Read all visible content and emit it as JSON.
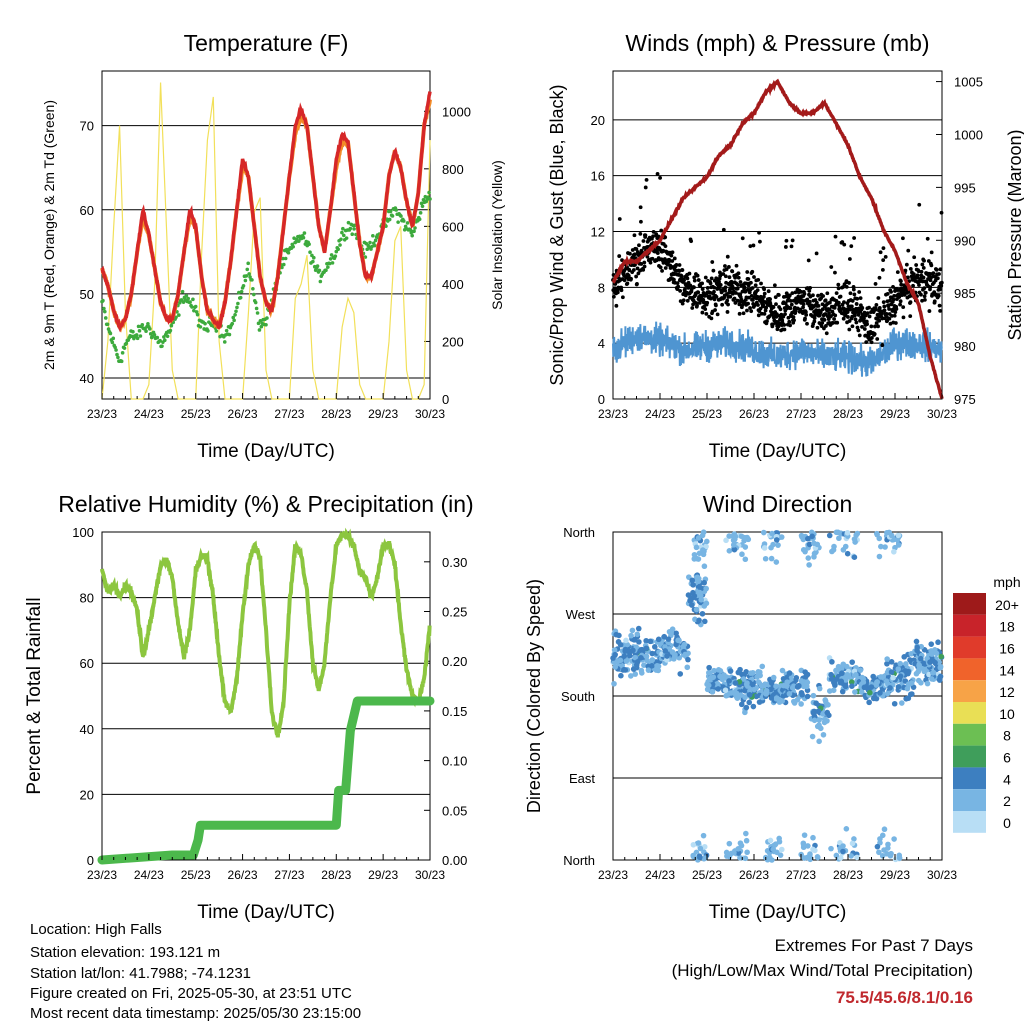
{
  "info": {
    "location": "Location: High Falls",
    "elevation": "Station elevation: 193.121 m",
    "latlon": "Station lat/lon: 41.7988; -74.1231",
    "created": "Figure created on Fri, 2025-05-30, at 23:51 UTC",
    "recent": "Most recent data timestamp: 2025/05/30 23:15:00"
  },
  "extremes": {
    "title": "Extremes For Past 7 Days",
    "subtitle": "(High/Low/Max Wind/Total Precipitation)",
    "values": "75.5/45.6/8.1/0.16",
    "color": "#c0282d"
  },
  "x_ticks": [
    "23/23",
    "24/23",
    "25/23",
    "26/23",
    "27/23",
    "28/23",
    "29/23",
    "30/23"
  ],
  "chart_data": [
    {
      "type": "line",
      "title": "Temperature (F)",
      "xlabel": "Time (Day/UTC)",
      "ylabel": "2m & 9m T (Red, Orange) & 2m Td (Green)",
      "y2label": "Solar Insolation (Yellow)",
      "ylim": [
        37.5,
        76.5
      ],
      "yticks": [
        40,
        50,
        60,
        70
      ],
      "y2lim": [
        0,
        1140
      ],
      "y2ticks": [
        0,
        200,
        400,
        600,
        800,
        1000
      ],
      "x": [
        0,
        0.125,
        0.25,
        0.375,
        0.5,
        0.625,
        0.75,
        0.875,
        1,
        1.125,
        1.25,
        1.375,
        1.5,
        1.625,
        1.75,
        1.875,
        2,
        2.125,
        2.25,
        2.375,
        2.5,
        2.625,
        2.75,
        2.875,
        3,
        3.125,
        3.25,
        3.375,
        3.5,
        3.625,
        3.75,
        3.875,
        4,
        4.125,
        4.25,
        4.375,
        4.5,
        4.625,
        4.75,
        4.875,
        5,
        5.125,
        5.25,
        5.375,
        5.5,
        5.625,
        5.75,
        5.875,
        6,
        6.125,
        6.25,
        6.375,
        6.5,
        6.625,
        6.75,
        6.875,
        7
      ],
      "series": [
        {
          "color": "#d62728",
          "values": [
            53,
            51,
            48,
            46,
            47,
            50,
            55,
            60,
            57,
            53,
            49,
            47,
            47,
            50,
            55,
            60,
            58,
            52,
            48,
            47,
            46,
            49,
            54,
            60,
            66,
            64,
            58,
            52,
            49,
            48,
            52,
            58,
            64,
            70,
            72,
            70,
            64,
            58,
            55,
            60,
            66,
            69,
            68,
            62,
            56,
            52,
            52,
            55,
            58,
            64,
            67,
            65,
            61,
            58,
            62,
            70,
            74
          ]
        },
        {
          "color": "#f28c28",
          "values": [
            53,
            51,
            48,
            46,
            47,
            50,
            55,
            59,
            57,
            53,
            49,
            47,
            47,
            50,
            55,
            59,
            58,
            52,
            48,
            47,
            46,
            49,
            54,
            60,
            65,
            64,
            58,
            52,
            49,
            48,
            52,
            58,
            64,
            69,
            71,
            70,
            64,
            58,
            55,
            60,
            65,
            68,
            68,
            62,
            56,
            52,
            52,
            55,
            58,
            64,
            67,
            65,
            61,
            58,
            62,
            70,
            73
          ]
        },
        {
          "color": "#3daa3d",
          "values": [
            49,
            46,
            44,
            42,
            44,
            45,
            45,
            46,
            46,
            45,
            44,
            45,
            46,
            48,
            50,
            49,
            48,
            46,
            46,
            47,
            46,
            45,
            46,
            48,
            51,
            53,
            50,
            46,
            47,
            49,
            52,
            54,
            55,
            56,
            57,
            56,
            54,
            52,
            53,
            54,
            55,
            57,
            58,
            58,
            56,
            55,
            56,
            57,
            58,
            59,
            60,
            59,
            58,
            57,
            59,
            61,
            62
          ]
        }
      ],
      "y2_series": {
        "color": "#f2e05a",
        "values": [
          0,
          200,
          600,
          950,
          300,
          0,
          0,
          0,
          50,
          400,
          1100,
          600,
          100,
          0,
          0,
          0,
          0,
          500,
          900,
          1050,
          200,
          0,
          0,
          0,
          0,
          300,
          650,
          700,
          100,
          0,
          0,
          0,
          0,
          350,
          400,
          500,
          100,
          0,
          0,
          0,
          0,
          250,
          350,
          300,
          50,
          0,
          0,
          0,
          0,
          200,
          550,
          600,
          100,
          0,
          0,
          50,
          900
        ]
      }
    },
    {
      "type": "scatter",
      "title": "Winds (mph) & Pressure (mb)",
      "xlabel": "Time (Day/UTC)",
      "ylabel": "Sonic/Prop Wind & Gust (Blue, Black)",
      "y2label": "Station Pressure (Maroon)",
      "ylim": [
        0,
        23.5
      ],
      "yticks": [
        0,
        4,
        8,
        12,
        16,
        20
      ],
      "y2lim": [
        975,
        1006
      ],
      "y2ticks": [
        975,
        980,
        985,
        990,
        995,
        1000,
        1005
      ],
      "series": [
        {
          "name": "",
          "color": "#000000"
        },
        {
          "name": "",
          "color": "#4f95d1"
        }
      ],
      "pressure_x": [
        0,
        0.25,
        0.5,
        0.75,
        1,
        1.25,
        1.5,
        1.75,
        2,
        2.25,
        2.5,
        2.75,
        3,
        3.25,
        3.5,
        3.75,
        4,
        4.25,
        4.5,
        4.75,
        5,
        5.25,
        5.5,
        5.75,
        6,
        6.25,
        6.5,
        6.75,
        7
      ],
      "pressure": [
        986,
        988,
        988,
        989,
        990,
        992,
        994,
        995,
        996,
        998,
        999,
        1001,
        1002,
        1004,
        1005,
        1003,
        1002,
        1002,
        1003,
        1001,
        999,
        996,
        994,
        991,
        989,
        986,
        984,
        979,
        975
      ],
      "pressure_color": "#a31a1a"
    },
    {
      "type": "line",
      "title": "Relative Humidity (%) & Precipitation (in)",
      "xlabel": "Time (Day/UTC)",
      "ylabel": "Percent & Total Rainfall",
      "ylim": [
        0,
        100
      ],
      "yticks": [
        0,
        20,
        40,
        60,
        80,
        100
      ],
      "y2lim": [
        0,
        0.33
      ],
      "y2ticks": [
        "0.00",
        "0.05",
        "0.10",
        "0.15",
        "0.20",
        "0.25",
        "0.30"
      ],
      "rh_x": [
        0,
        0.125,
        0.25,
        0.375,
        0.5,
        0.625,
        0.75,
        0.875,
        1,
        1.125,
        1.25,
        1.375,
        1.5,
        1.625,
        1.75,
        1.875,
        2,
        2.125,
        2.25,
        2.375,
        2.5,
        2.625,
        2.75,
        2.875,
        3,
        3.125,
        3.25,
        3.375,
        3.5,
        3.625,
        3.75,
        3.875,
        4,
        4.125,
        4.25,
        4.375,
        4.5,
        4.625,
        4.75,
        4.875,
        5,
        5.125,
        5.25,
        5.375,
        5.5,
        5.625,
        5.75,
        5.875,
        6,
        6.125,
        6.25,
        6.375,
        6.5,
        6.625,
        6.75,
        6.875,
        7
      ],
      "rh": [
        88,
        82,
        84,
        80,
        84,
        82,
        76,
        62,
        70,
        80,
        90,
        92,
        86,
        72,
        62,
        70,
        88,
        93,
        92,
        80,
        62,
        48,
        45,
        55,
        75,
        90,
        96,
        92,
        70,
        45,
        38,
        48,
        78,
        96,
        93,
        82,
        60,
        52,
        60,
        80,
        96,
        99,
        99,
        96,
        88,
        86,
        80,
        86,
        96,
        96,
        90,
        72,
        58,
        50,
        48,
        55,
        72
      ],
      "rh_color": "#8cc63f",
      "precip_x": [
        0,
        1.5,
        1.95,
        2.05,
        2.1,
        5.0,
        5.05,
        5.2,
        5.3,
        5.45,
        5.5,
        6.95,
        7
      ],
      "precip": [
        0,
        0.005,
        0.005,
        0.02,
        0.035,
        0.035,
        0.07,
        0.07,
        0.13,
        0.16,
        0.16,
        0.16,
        0.16
      ],
      "precip_color": "#4cb84c"
    },
    {
      "type": "scatter",
      "title": "Wind Direction",
      "xlabel": "Time (Day/UTC)",
      "ylabel": "Direction (Colored By Speed)",
      "ylim": [
        0,
        360
      ],
      "yticks": [
        "North",
        "East",
        "South",
        "West",
        "North"
      ],
      "legend": {
        "title": "mph",
        "labels": [
          "20+",
          "18",
          "16",
          "14",
          "12",
          "10",
          "8",
          "6",
          "4",
          "2",
          "0"
        ],
        "colors": [
          "#9e1a1a",
          "#c8232a",
          "#e03b2b",
          "#f0632b",
          "#f7a347",
          "#e9df55",
          "#6cbf53",
          "#3f9e5b",
          "#3d7fc0",
          "#78b5e3",
          "#b8def5"
        ]
      }
    }
  ]
}
